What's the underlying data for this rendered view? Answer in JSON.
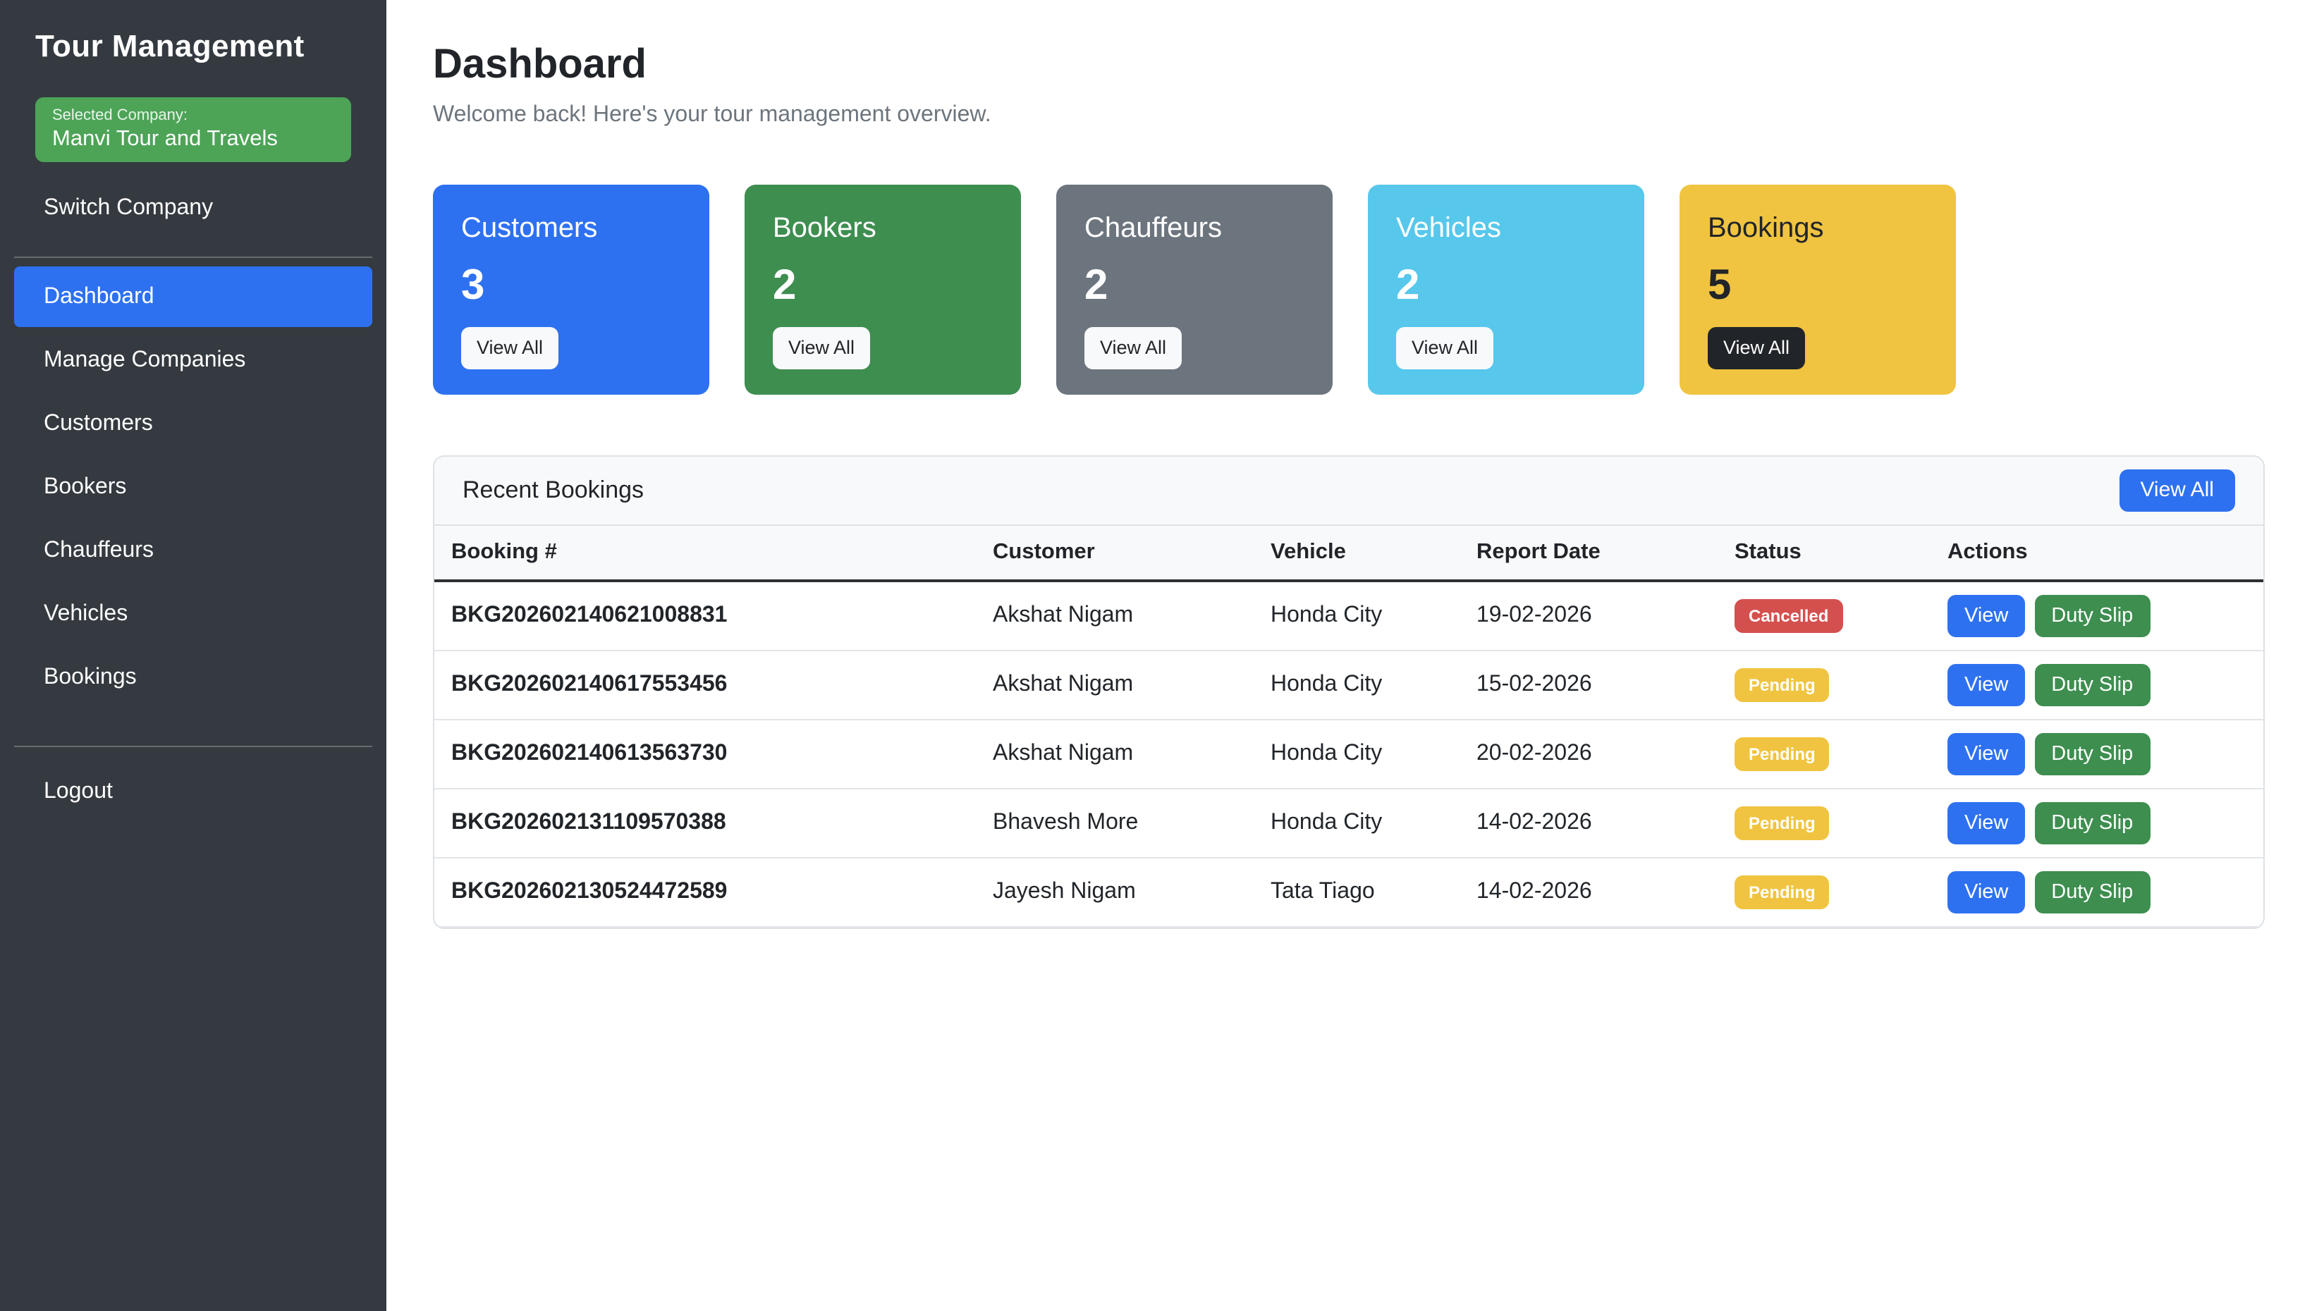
{
  "sidebar": {
    "title": "Tour Management",
    "company_box": {
      "label": "Selected Company:",
      "name": "Manvi Tour and Travels"
    },
    "switch_company_label": "Switch Company",
    "nav_items": [
      {
        "label": "Dashboard",
        "active": true
      },
      {
        "label": "Manage Companies",
        "active": false
      },
      {
        "label": "Customers",
        "active": false
      },
      {
        "label": "Bookers",
        "active": false
      },
      {
        "label": "Chauffeurs",
        "active": false
      },
      {
        "label": "Vehicles",
        "active": false
      },
      {
        "label": "Bookings",
        "active": false
      }
    ],
    "logout_label": "Logout"
  },
  "page": {
    "title": "Dashboard",
    "subtitle": "Welcome back! Here's your tour management overview."
  },
  "stat_cards": [
    {
      "label": "Customers",
      "value": "3",
      "variant": "primary",
      "text": "light",
      "button_label": "View All",
      "button_variant": "light"
    },
    {
      "label": "Bookers",
      "value": "2",
      "variant": "success",
      "text": "light",
      "button_label": "View All",
      "button_variant": "light"
    },
    {
      "label": "Chauffeurs",
      "value": "2",
      "variant": "secondary",
      "text": "light",
      "button_label": "View All",
      "button_variant": "light"
    },
    {
      "label": "Vehicles",
      "value": "2",
      "variant": "info",
      "text": "light",
      "button_label": "View All",
      "button_variant": "light"
    },
    {
      "label": "Bookings",
      "value": "5",
      "variant": "warning",
      "text": "dark",
      "button_label": "View All",
      "button_variant": "dark"
    }
  ],
  "recent_bookings": {
    "title": "Recent Bookings",
    "view_all_label": "View All",
    "columns": [
      "Booking #",
      "Customer",
      "Vehicle",
      "Report Date",
      "Status",
      "Actions"
    ],
    "action_labels": {
      "view": "View",
      "duty_slip": "Duty Slip"
    },
    "rows": [
      {
        "booking_no": "BKG202602140621008831",
        "customer": "Akshat Nigam",
        "vehicle": "Honda City",
        "report_date": "19-02-2026",
        "status": "Cancelled",
        "status_variant": "danger"
      },
      {
        "booking_no": "BKG202602140617553456",
        "customer": "Akshat Nigam",
        "vehicle": "Honda City",
        "report_date": "15-02-2026",
        "status": "Pending",
        "status_variant": "warning"
      },
      {
        "booking_no": "BKG202602140613563730",
        "customer": "Akshat Nigam",
        "vehicle": "Honda City",
        "report_date": "20-02-2026",
        "status": "Pending",
        "status_variant": "warning"
      },
      {
        "booking_no": "BKG202602131109570388",
        "customer": "Bhavesh More",
        "vehicle": "Honda City",
        "report_date": "14-02-2026",
        "status": "Pending",
        "status_variant": "warning"
      },
      {
        "booking_no": "BKG202602130524472589",
        "customer": "Jayesh Nigam",
        "vehicle": "Tata Tiago",
        "report_date": "14-02-2026",
        "status": "Pending",
        "status_variant": "warning"
      }
    ]
  },
  "colors": {
    "primary": "#2e71f0",
    "success": "#3e8e50",
    "secondary": "#6c757d",
    "info": "#57c7ec",
    "warning": "#f0c440",
    "danger": "#d4504e",
    "dark": "#212529",
    "light": "#f8f9fa",
    "sidebar": "#343a40",
    "company_box": "#4da457"
  }
}
